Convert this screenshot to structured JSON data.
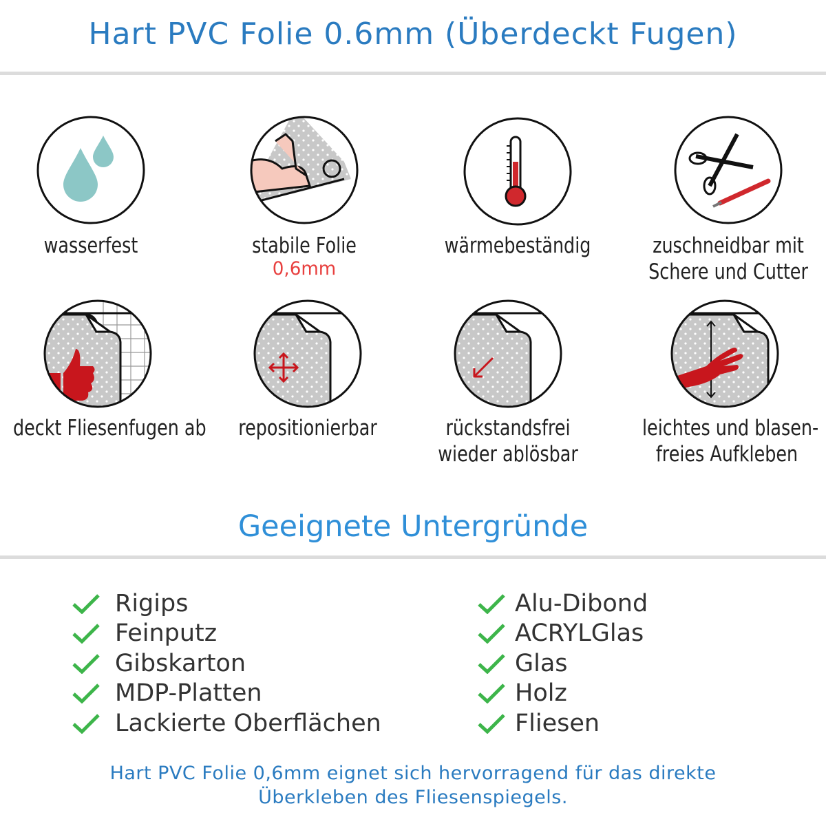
{
  "header": {
    "title": "Hart PVC Folie 0.6mm (Überdeckt Fugen)"
  },
  "features": [
    {
      "icon": "water-drops-icon",
      "label": "wasserfest"
    },
    {
      "icon": "strong-arm-icon",
      "label": "stabile Folie",
      "sub": "0,6mm"
    },
    {
      "icon": "thermometer-icon",
      "label": "wärmebeständig"
    },
    {
      "icon": "scissors-cutter-icon",
      "label": "zuschneidbar mit",
      "label2": "Schere und Cutter"
    },
    {
      "icon": "thumbs-up-tiles-icon",
      "label": "deckt Fliesenfugen ab"
    },
    {
      "icon": "move-arrows-icon",
      "label": "repositionierbar"
    },
    {
      "icon": "peel-arrow-icon",
      "label": "rückstandsfrei",
      "label2": "wieder ablösbar"
    },
    {
      "icon": "hand-smooth-icon",
      "label": "leichtes und blasen-",
      "label2": "freies Aufkleben"
    }
  ],
  "surfaces": {
    "title": "Geeignete Untergründe",
    "left": [
      "Rigips",
      "Feinputz",
      "Gibskarton",
      "MDP-Platten",
      "Lackierte Oberflächen"
    ],
    "right": [
      "Alu-Dibond",
      "ACRYLGlas",
      "Glas",
      "Holz",
      "Fliesen"
    ]
  },
  "footer": {
    "line1": "Hart PVC Folie 0,6mm eignet sich hervorragend für das direkte",
    "line2": "Überkleben des Fliesenspiegels."
  },
  "colors": {
    "title": "#2a7bc0",
    "heading": "#2f8fd8",
    "accent_red": "#e8403f",
    "check": "#3db54a",
    "drop": "#8cc7c6"
  }
}
